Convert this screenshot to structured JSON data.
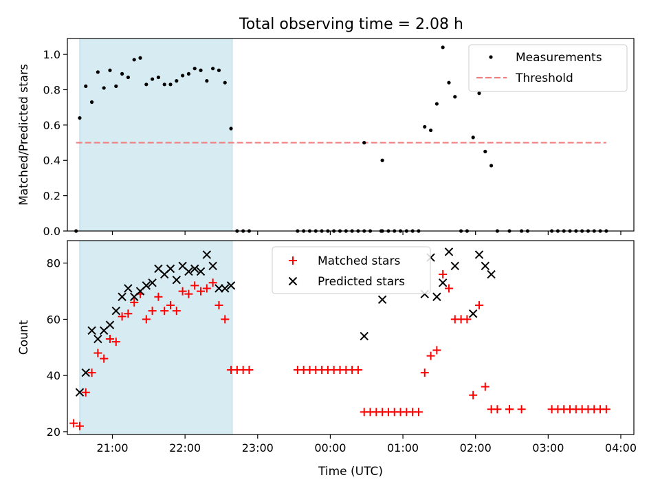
{
  "title": "Total observing time = 2.08 h",
  "chart_data": [
    {
      "type": "scatter",
      "ylabel": "Matched/Predicted stars",
      "xlim": [
        20.38,
        4.18
      ],
      "ylim": [
        0,
        1.09
      ],
      "ytick_labels": [
        "0.0",
        "0.2",
        "0.4",
        "0.6",
        "0.8",
        "1.0"
      ],
      "ytick_values": [
        0,
        0.2,
        0.4,
        0.6,
        0.8,
        1.0
      ],
      "shaded_interval": [
        "20:33",
        "22:39"
      ],
      "shade_color": "#add8e6",
      "legend_position": "top-right",
      "series": [
        {
          "name": "Measurements",
          "marker": "dot",
          "color": "#000000",
          "points": [
            [
              "20:30",
              0.0
            ],
            [
              "20:33",
              0.64
            ],
            [
              "20:38",
              0.82
            ],
            [
              "20:43",
              0.73
            ],
            [
              "20:48",
              0.9
            ],
            [
              "20:53",
              0.81
            ],
            [
              "20:58",
              0.91
            ],
            [
              "21:03",
              0.82
            ],
            [
              "21:08",
              0.89
            ],
            [
              "21:13",
              0.87
            ],
            [
              "21:18",
              0.97
            ],
            [
              "21:23",
              0.98
            ],
            [
              "21:28",
              0.83
            ],
            [
              "21:33",
              0.86
            ],
            [
              "21:38",
              0.87
            ],
            [
              "21:43",
              0.83
            ],
            [
              "21:48",
              0.83
            ],
            [
              "21:53",
              0.85
            ],
            [
              "21:58",
              0.88
            ],
            [
              "22:03",
              0.89
            ],
            [
              "22:08",
              0.92
            ],
            [
              "22:13",
              0.91
            ],
            [
              "22:18",
              0.85
            ],
            [
              "22:23",
              0.92
            ],
            [
              "22:28",
              0.91
            ],
            [
              "22:33",
              0.84
            ],
            [
              "22:38",
              0.58
            ],
            [
              "22:43",
              0.0
            ],
            [
              "22:48",
              0.0
            ],
            [
              "22:53",
              0.0
            ],
            [
              "23:33",
              0.0
            ],
            [
              "23:38",
              0.0
            ],
            [
              "23:43",
              0.0
            ],
            [
              "23:48",
              0.0
            ],
            [
              "23:53",
              0.0
            ],
            [
              "23:58",
              0.0
            ],
            [
              "00:03",
              0.0
            ],
            [
              "00:08",
              0.0
            ],
            [
              "00:13",
              0.0
            ],
            [
              "00:18",
              0.0
            ],
            [
              "00:23",
              0.0
            ],
            [
              "00:28",
              0.0
            ],
            [
              "00:33",
              0.0
            ],
            [
              "00:28",
              0.5
            ],
            [
              "00:42",
              0.0
            ],
            [
              "00:43",
              0.0
            ],
            [
              "00:43",
              0.4
            ],
            [
              "00:48",
              0.0
            ],
            [
              "00:53",
              0.0
            ],
            [
              "00:58",
              0.0
            ],
            [
              "01:03",
              0.0
            ],
            [
              "01:08",
              0.0
            ],
            [
              "01:13",
              0.0
            ],
            [
              "01:18",
              0.59
            ],
            [
              "01:23",
              0.57
            ],
            [
              "01:28",
              0.72
            ],
            [
              "01:33",
              1.04
            ],
            [
              "01:38",
              0.84
            ],
            [
              "01:43",
              0.76
            ],
            [
              "01:48",
              0.0
            ],
            [
              "01:53",
              0.0
            ],
            [
              "01:58",
              0.53
            ],
            [
              "02:03",
              0.78
            ],
            [
              "02:08",
              0.45
            ],
            [
              "02:13",
              0.37
            ],
            [
              "02:18",
              0.0
            ],
            [
              "02:28",
              0.0
            ],
            [
              "02:38",
              0.0
            ],
            [
              "02:43",
              0.0
            ],
            [
              "03:03",
              0.0
            ],
            [
              "03:08",
              0.0
            ],
            [
              "03:13",
              0.0
            ],
            [
              "03:18",
              0.0
            ],
            [
              "03:23",
              0.0
            ],
            [
              "03:28",
              0.0
            ],
            [
              "03:33",
              0.0
            ],
            [
              "03:38",
              0.0
            ],
            [
              "03:43",
              0.0
            ],
            [
              "03:48",
              0.0
            ]
          ]
        },
        {
          "name": "Threshold",
          "marker": "dashed-line",
          "color": "#f08080",
          "points": [
            [
              "20:30",
              0.5
            ],
            [
              "03:48",
              0.5
            ]
          ]
        }
      ]
    },
    {
      "type": "scatter",
      "xlabel": "Time (UTC)",
      "ylabel": "Count",
      "xlim": [
        20.38,
        4.18
      ],
      "ylim": [
        19,
        88
      ],
      "xtick_labels": [
        "21:00",
        "22:00",
        "23:00",
        "00:00",
        "01:00",
        "02:00",
        "03:00",
        "04:00"
      ],
      "ytick_labels": [
        "20",
        "40",
        "60",
        "80"
      ],
      "ytick_values": [
        20,
        40,
        60,
        80
      ],
      "shaded_interval": [
        "20:33",
        "22:39"
      ],
      "shade_color": "#add8e6",
      "legend_position": "top-center",
      "series": [
        {
          "name": "Matched stars",
          "marker": "plus",
          "color": "#ff0000",
          "points": [
            [
              "20:28",
              23
            ],
            [
              "20:33",
              22
            ],
            [
              "20:38",
              34
            ],
            [
              "20:43",
              41
            ],
            [
              "20:48",
              48
            ],
            [
              "20:53",
              46
            ],
            [
              "20:58",
              53
            ],
            [
              "21:03",
              52
            ],
            [
              "21:08",
              61
            ],
            [
              "21:13",
              62
            ],
            [
              "21:18",
              66
            ],
            [
              "21:23",
              69
            ],
            [
              "21:28",
              60
            ],
            [
              "21:33",
              63
            ],
            [
              "21:38",
              68
            ],
            [
              "21:43",
              63
            ],
            [
              "21:48",
              65
            ],
            [
              "21:53",
              63
            ],
            [
              "21:58",
              70
            ],
            [
              "22:03",
              69
            ],
            [
              "22:08",
              72
            ],
            [
              "22:13",
              70
            ],
            [
              "22:18",
              71
            ],
            [
              "22:23",
              73
            ],
            [
              "22:28",
              65
            ],
            [
              "22:33",
              60
            ],
            [
              "22:38",
              42
            ],
            [
              "22:43",
              42
            ],
            [
              "22:48",
              42
            ],
            [
              "22:53",
              42
            ],
            [
              "23:33",
              42
            ],
            [
              "23:38",
              42
            ],
            [
              "23:43",
              42
            ],
            [
              "23:48",
              42
            ],
            [
              "23:53",
              42
            ],
            [
              "23:58",
              42
            ],
            [
              "00:03",
              42
            ],
            [
              "00:08",
              42
            ],
            [
              "00:13",
              42
            ],
            [
              "00:18",
              42
            ],
            [
              "00:23",
              42
            ],
            [
              "00:28",
              27
            ],
            [
              "00:33",
              27
            ],
            [
              "00:38",
              27
            ],
            [
              "00:43",
              27
            ],
            [
              "00:48",
              27
            ],
            [
              "00:53",
              27
            ],
            [
              "00:58",
              27
            ],
            [
              "01:03",
              27
            ],
            [
              "01:08",
              27
            ],
            [
              "01:13",
              27
            ],
            [
              "01:18",
              41
            ],
            [
              "01:23",
              47
            ],
            [
              "01:28",
              49
            ],
            [
              "01:33",
              76
            ],
            [
              "01:38",
              71
            ],
            [
              "01:43",
              60
            ],
            [
              "01:48",
              60
            ],
            [
              "01:53",
              60
            ],
            [
              "01:58",
              33
            ],
            [
              "02:03",
              65
            ],
            [
              "02:08",
              36
            ],
            [
              "02:13",
              28
            ],
            [
              "02:18",
              28
            ],
            [
              "02:28",
              28
            ],
            [
              "02:28",
              28
            ],
            [
              "02:38",
              28
            ],
            [
              "03:03",
              28
            ],
            [
              "03:08",
              28
            ],
            [
              "03:13",
              28
            ],
            [
              "03:18",
              28
            ],
            [
              "03:23",
              28
            ],
            [
              "03:28",
              28
            ],
            [
              "03:33",
              28
            ],
            [
              "03:38",
              28
            ],
            [
              "03:43",
              28
            ],
            [
              "03:48",
              28
            ]
          ]
        },
        {
          "name": "Predicted stars",
          "marker": "x",
          "color": "#000000",
          "points": [
            [
              "20:33",
              34
            ],
            [
              "20:38",
              41
            ],
            [
              "20:43",
              56
            ],
            [
              "20:48",
              53
            ],
            [
              "20:53",
              56
            ],
            [
              "20:58",
              58
            ],
            [
              "21:03",
              63
            ],
            [
              "21:08",
              68
            ],
            [
              "21:13",
              71
            ],
            [
              "21:18",
              68
            ],
            [
              "21:23",
              70
            ],
            [
              "21:28",
              72
            ],
            [
              "21:33",
              73
            ],
            [
              "21:38",
              78
            ],
            [
              "21:43",
              76
            ],
            [
              "21:48",
              78
            ],
            [
              "21:53",
              74
            ],
            [
              "21:58",
              79
            ],
            [
              "22:03",
              77
            ],
            [
              "22:08",
              78
            ],
            [
              "22:13",
              77
            ],
            [
              "22:18",
              83
            ],
            [
              "22:23",
              79
            ],
            [
              "22:28",
              71
            ],
            [
              "22:33",
              71
            ],
            [
              "22:38",
              72
            ],
            [
              "00:28",
              54
            ],
            [
              "00:43",
              67
            ],
            [
              "01:18",
              69
            ],
            [
              "01:23",
              82
            ],
            [
              "01:28",
              68
            ],
            [
              "01:33",
              73
            ],
            [
              "01:38",
              84
            ],
            [
              "01:43",
              79
            ],
            [
              "01:58",
              62
            ],
            [
              "02:03",
              83
            ],
            [
              "02:08",
              79
            ],
            [
              "02:13",
              76
            ]
          ]
        }
      ]
    }
  ]
}
